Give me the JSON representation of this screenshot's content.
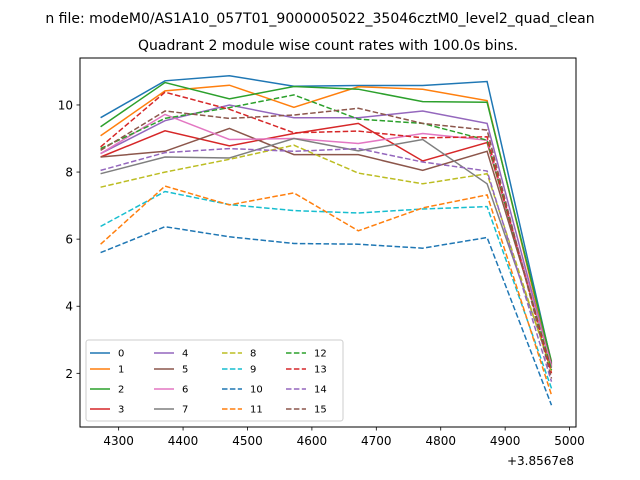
{
  "chart_data": {
    "type": "line",
    "suptitle": "n file: modeM0/AS1A10_057T01_9000005022_35046cztM0_level2_quad_clean",
    "title": "Quadrant 2 module wise count rates with 100.0s bins.",
    "offset_label": "+3.8567e8",
    "xlabel": "",
    "ylabel": "",
    "xlim": [
      4240,
      5010
    ],
    "ylim": [
      0.4,
      11.4
    ],
    "x_ticks": [
      4300,
      4400,
      4500,
      4600,
      4700,
      4800,
      4900,
      5000
    ],
    "y_ticks": [
      2,
      4,
      6,
      8,
      10
    ],
    "legend_placement": "lower-left",
    "legend_columns": 4,
    "x": [
      4272,
      4372,
      4472,
      4572,
      4672,
      4772,
      4872,
      4972
    ],
    "series": [
      {
        "name": "0",
        "color": "#1f77b4",
        "style": "solid",
        "values": [
          9.62,
          10.72,
          10.87,
          10.56,
          10.58,
          10.58,
          10.7,
          2.3
        ]
      },
      {
        "name": "1",
        "color": "#ff7f0e",
        "style": "solid",
        "values": [
          9.08,
          10.42,
          10.59,
          9.93,
          10.54,
          10.47,
          10.13,
          2.2
        ]
      },
      {
        "name": "2",
        "color": "#2ca02c",
        "style": "solid",
        "values": [
          9.35,
          10.67,
          10.18,
          10.55,
          10.47,
          10.1,
          10.08,
          2.35
        ]
      },
      {
        "name": "3",
        "color": "#d62728",
        "style": "solid",
        "values": [
          8.45,
          9.23,
          8.78,
          9.15,
          9.45,
          8.33,
          8.88,
          2.25
        ]
      },
      {
        "name": "4",
        "color": "#9467bd",
        "style": "solid",
        "values": [
          8.55,
          9.53,
          10.0,
          9.62,
          9.62,
          9.82,
          9.45,
          2.2
        ]
      },
      {
        "name": "5",
        "color": "#8c564b",
        "style": "solid",
        "values": [
          8.45,
          8.62,
          9.3,
          8.52,
          8.52,
          8.05,
          8.62,
          2.28
        ]
      },
      {
        "name": "6",
        "color": "#e377c2",
        "style": "solid",
        "values": [
          8.55,
          9.72,
          8.97,
          9.0,
          8.85,
          9.15,
          8.95,
          2.22
        ]
      },
      {
        "name": "7",
        "color": "#7f7f7f",
        "style": "solid",
        "values": [
          7.95,
          8.45,
          8.42,
          9.0,
          8.63,
          8.97,
          7.65,
          2.15
        ]
      },
      {
        "name": "8",
        "color": "#bcbd22",
        "style": "dashed",
        "values": [
          7.55,
          8.0,
          8.38,
          8.8,
          7.97,
          7.65,
          7.95,
          2.05
        ]
      },
      {
        "name": "9",
        "color": "#17becf",
        "style": "dashed",
        "values": [
          6.38,
          7.42,
          7.03,
          6.85,
          6.78,
          6.9,
          6.97,
          1.55
        ]
      },
      {
        "name": "10",
        "color": "#1f77b4",
        "style": "dashed",
        "values": [
          5.6,
          6.37,
          6.07,
          5.87,
          5.85,
          5.73,
          6.05,
          1.05
        ]
      },
      {
        "name": "11",
        "color": "#ff7f0e",
        "style": "dashed",
        "values": [
          5.85,
          7.58,
          7.02,
          7.38,
          6.25,
          6.93,
          7.32,
          1.35
        ]
      },
      {
        "name": "12",
        "color": "#2ca02c",
        "style": "dashed",
        "values": [
          8.7,
          9.6,
          9.92,
          10.3,
          9.58,
          9.45,
          8.95,
          2.1
        ]
      },
      {
        "name": "13",
        "color": "#d62728",
        "style": "dashed",
        "values": [
          8.75,
          10.38,
          9.87,
          9.17,
          9.22,
          9.02,
          9.05,
          2.0
        ]
      },
      {
        "name": "14",
        "color": "#9467bd",
        "style": "dashed",
        "values": [
          8.05,
          8.58,
          8.7,
          8.62,
          8.7,
          8.3,
          8.03,
          1.75
        ]
      },
      {
        "name": "15",
        "color": "#8c564b",
        "style": "dashed",
        "values": [
          8.65,
          9.82,
          9.6,
          9.7,
          9.9,
          9.45,
          9.25,
          1.85
        ]
      }
    ]
  }
}
